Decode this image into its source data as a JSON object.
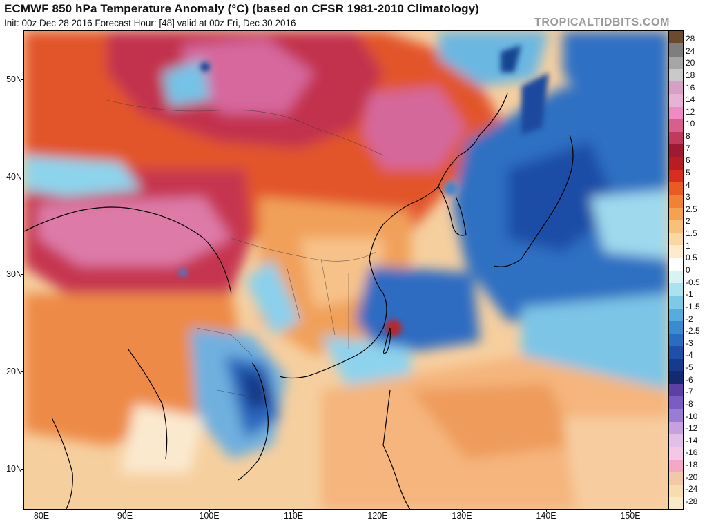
{
  "header": {
    "title": "ECMWF 850 hPa Temperature Anomaly (°C) (based on CFSR 1981-2010 Climatology)",
    "subtitle": "Init: 00z Dec 28 2016   Forecast Hour: [48]   valid at 00z Fri, Dec 30 2016",
    "brand": "TROPICALTIDBITS.COM"
  },
  "map": {
    "region": "East Asia and Western Pacific",
    "latitude_labels": [
      "50N",
      "40N",
      "30N",
      "20N",
      "10N"
    ],
    "longitude_labels": [
      "80E",
      "90E",
      "100E",
      "110E",
      "120E",
      "130E",
      "140E",
      "150E"
    ],
    "anomaly_areas": [
      {
        "area": "Mongolia and northern China",
        "anomaly": "+6 to +14"
      },
      {
        "area": "Tibetan Plateau",
        "anomaly": "+7 to +14"
      },
      {
        "area": "Sea of Japan and Japan",
        "anomaly": "-2 to -6"
      },
      {
        "area": "East China Sea and Taiwan",
        "anomaly": "-3 to -6"
      },
      {
        "area": "Vietnam and Laos",
        "anomaly": "-3 to -8"
      },
      {
        "area": "Western Pacific",
        "anomaly": "+0.5 to +4"
      }
    ]
  },
  "colorbar": {
    "labels": [
      "28",
      "24",
      "20",
      "18",
      "16",
      "14",
      "12",
      "10",
      "8",
      "7",
      "6",
      "5",
      "4",
      "3",
      "2.5",
      "2",
      "1.5",
      "1",
      "0.5",
      "0",
      "-0.5",
      "-1",
      "-1.5",
      "-2",
      "-2.5",
      "-3",
      "-4",
      "-5",
      "-6",
      "-7",
      "-8",
      "-10",
      "-12",
      "-14",
      "-16",
      "-18",
      "-20",
      "-24",
      "-28"
    ],
    "colors": [
      "#6b4a2e",
      "#7e7e7e",
      "#a6a6a6",
      "#c9c9c9",
      "#d8a0c6",
      "#e6b3d6",
      "#f08ac4",
      "#d75f8e",
      "#bf3a5b",
      "#9c1b32",
      "#b81d22",
      "#d62f1f",
      "#e95a25",
      "#f08135",
      "#f4a152",
      "#f8c07a",
      "#fbd8a3",
      "#fdebcc",
      "#ffffff",
      "#d8f3f4",
      "#a9e3ef",
      "#7dcae6",
      "#56acdc",
      "#3a8bd0",
      "#2a6cc0",
      "#1f4fa8",
      "#183a8c",
      "#132a70",
      "#5e3fa6",
      "#7a5cc2",
      "#9a7cd4",
      "#c7a0e0",
      "#e2bfe9",
      "#f3c7e5",
      "#f3a8c8",
      "#f2c9a8",
      "#f7dcb0",
      "#f9e9c8"
    ]
  }
}
